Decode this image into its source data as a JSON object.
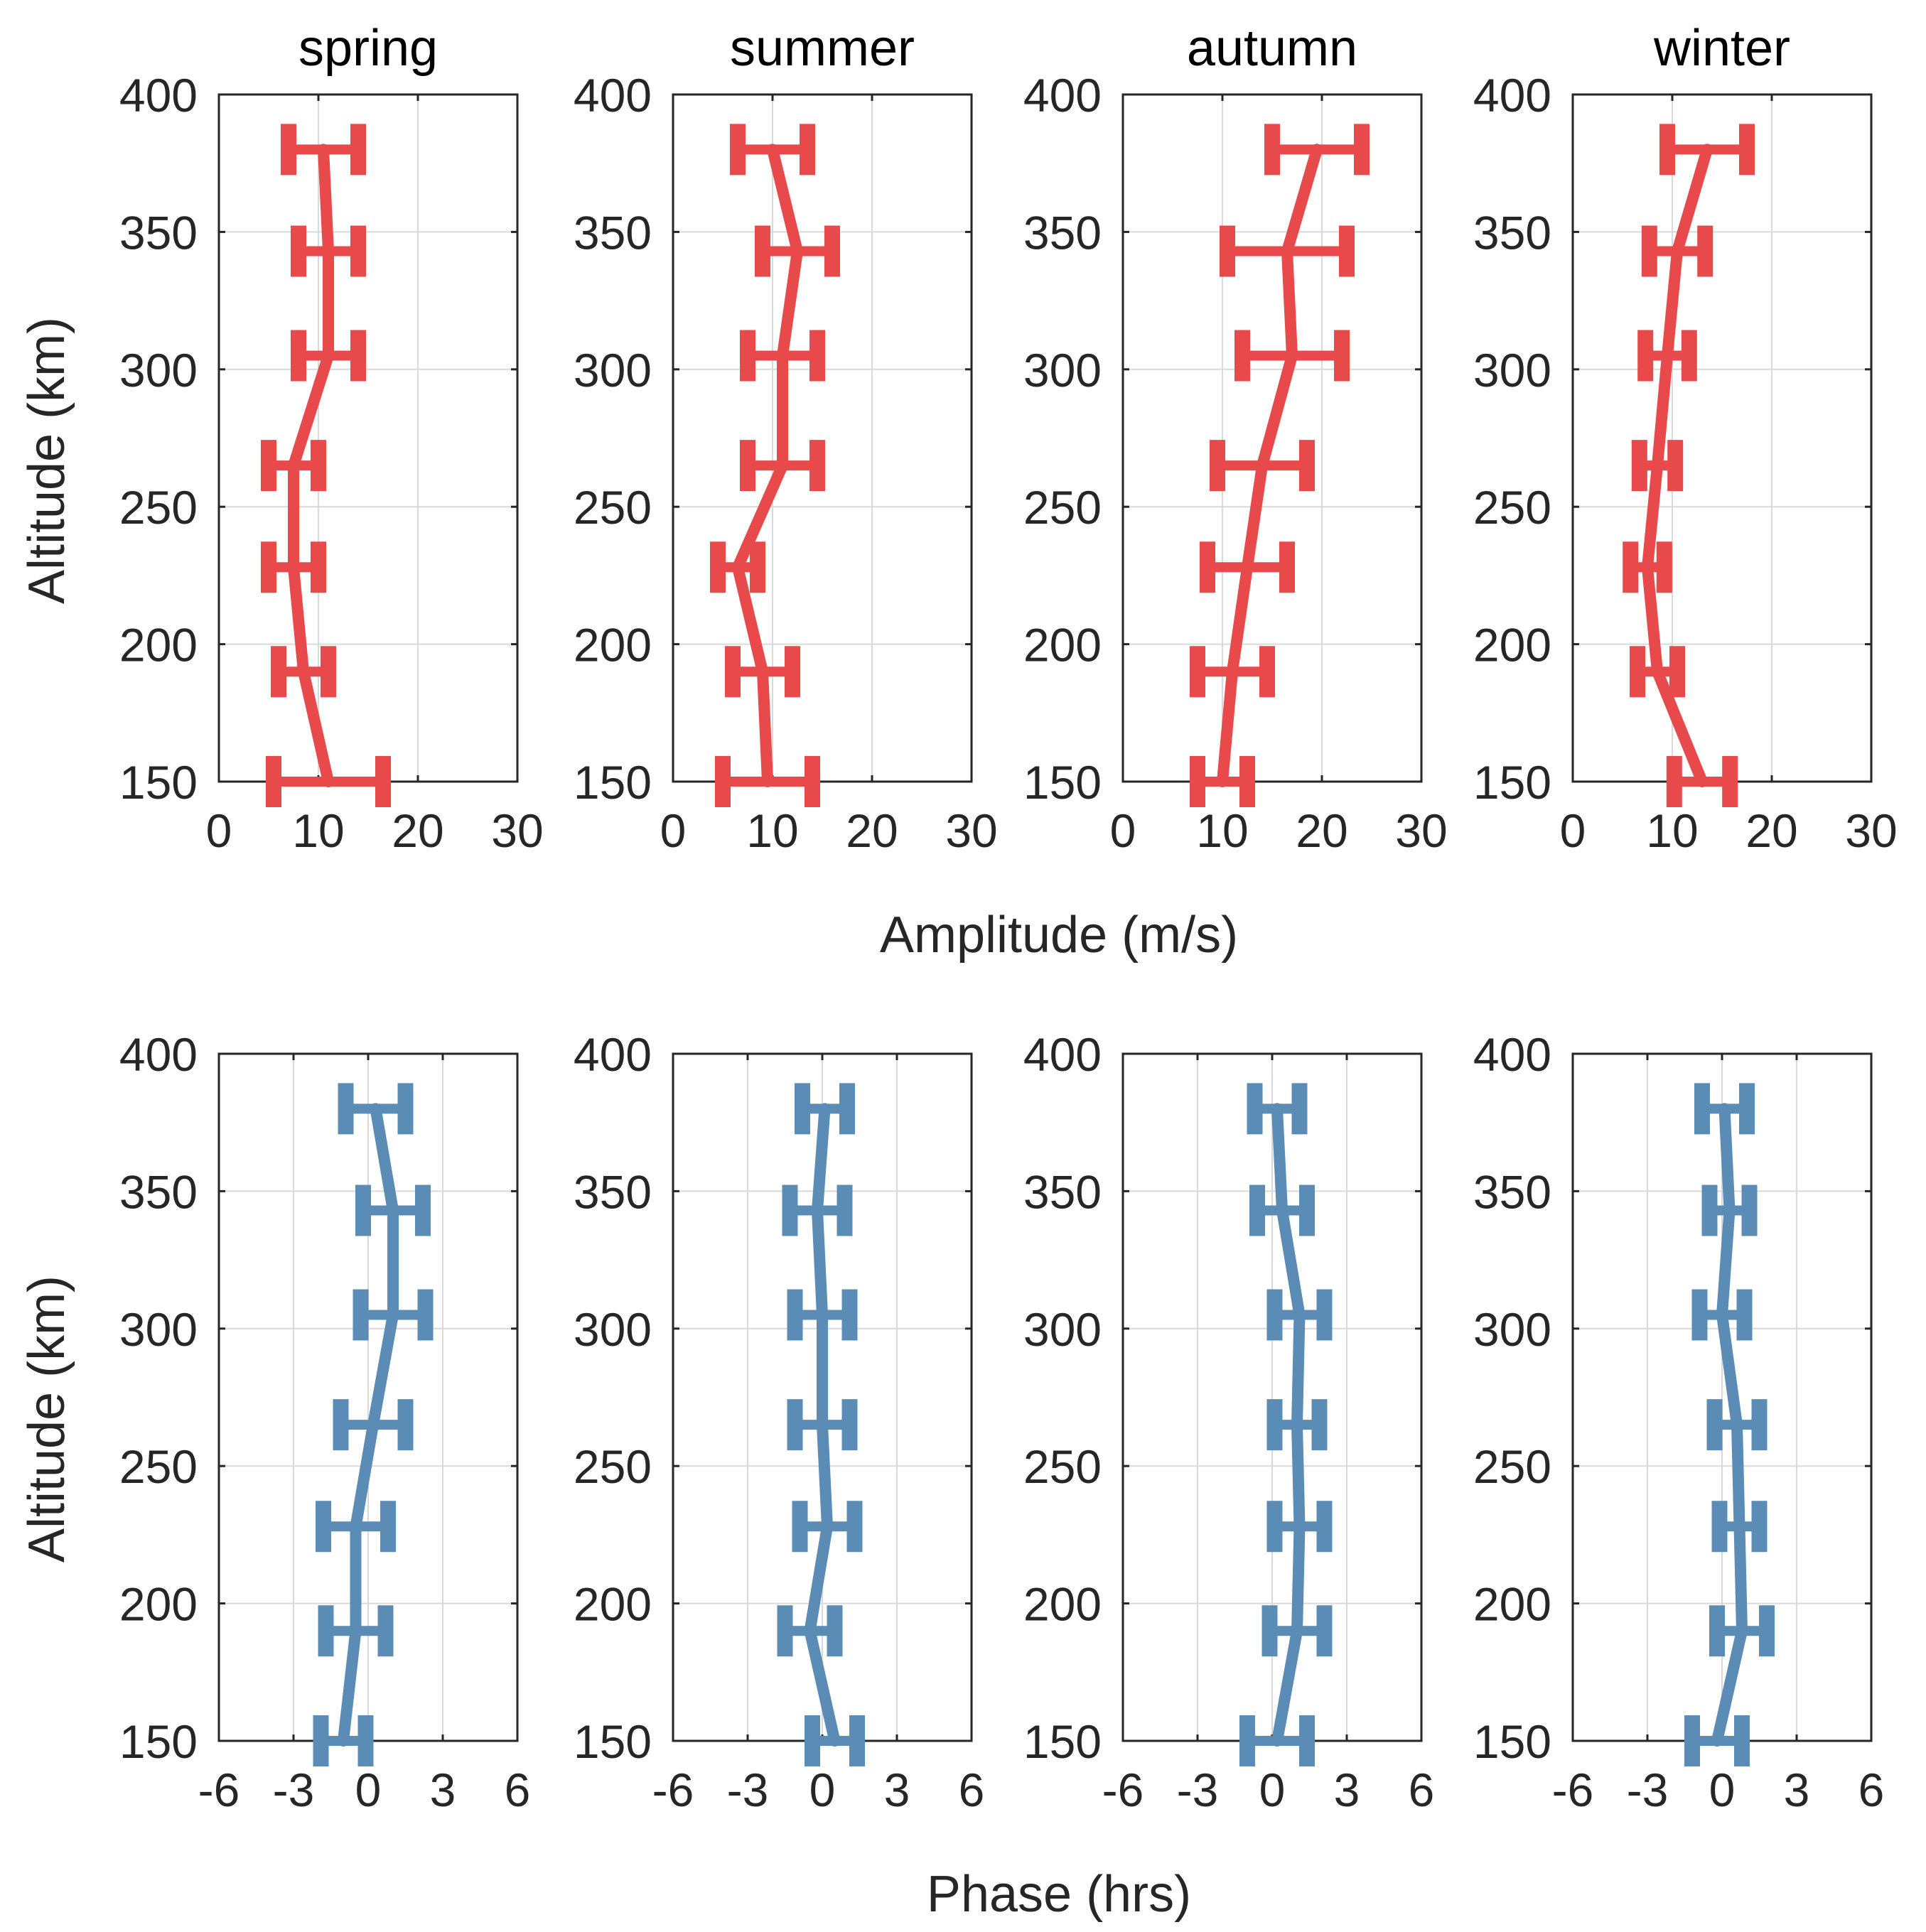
{
  "colors": {
    "amplitude": "#e84a4b",
    "phase": "#5a8cb5",
    "axis": "#262626",
    "grid": "#d9d9d9"
  },
  "labels": {
    "amplitude_xlabel": "Amplitude (m/s)",
    "phase_xlabel": "Phase (hrs)",
    "top_ylabel": "Altitude (km)",
    "bottom_ylabel": "Altitude (km)"
  },
  "chart_data": [
    {
      "type": "line",
      "row": "amplitude",
      "title": "spring",
      "xlabel": "Amplitude (m/s)",
      "ylabel": "Altitude (km)",
      "xlim": [
        0,
        30
      ],
      "ylim": [
        150,
        400
      ],
      "xticks": [
        "0",
        "10",
        "20",
        "30"
      ],
      "yticks": [
        "150",
        "200",
        "250",
        "300",
        "350",
        "400"
      ],
      "y": [
        150,
        190,
        228,
        265,
        305,
        343,
        380
      ],
      "x": [
        11,
        8.5,
        7.5,
        7.5,
        11,
        11,
        10.5
      ],
      "xerr": [
        5.5,
        2.5,
        2.5,
        2.5,
        3.0,
        3.0,
        3.5
      ]
    },
    {
      "type": "line",
      "row": "amplitude",
      "title": "summer",
      "xlabel": "Amplitude (m/s)",
      "ylabel": "Altitude (km)",
      "xlim": [
        0,
        30
      ],
      "ylim": [
        150,
        400
      ],
      "xticks": [
        "0",
        "10",
        "20",
        "30"
      ],
      "yticks": [
        "150",
        "200",
        "250",
        "300",
        "350",
        "400"
      ],
      "y": [
        150,
        190,
        228,
        265,
        305,
        343,
        380
      ],
      "x": [
        9.5,
        9,
        6.5,
        11,
        11,
        12.5,
        10
      ],
      "xerr": [
        4.5,
        3.0,
        2.0,
        3.5,
        3.5,
        3.5,
        3.5
      ]
    },
    {
      "type": "line",
      "row": "amplitude",
      "title": "autumn",
      "xlabel": "Amplitude (m/s)",
      "ylabel": "Altitude (km)",
      "xlim": [
        0,
        30
      ],
      "ylim": [
        150,
        400
      ],
      "xticks": [
        "0",
        "10",
        "20",
        "30"
      ],
      "yticks": [
        "150",
        "200",
        "250",
        "300",
        "350",
        "400"
      ],
      "y": [
        150,
        190,
        228,
        265,
        305,
        343,
        380
      ],
      "x": [
        10,
        11,
        12.5,
        14,
        17,
        16.5,
        19.5
      ],
      "xerr": [
        2.5,
        3.5,
        4.0,
        4.5,
        5.0,
        6.0,
        4.5
      ]
    },
    {
      "type": "line",
      "row": "amplitude",
      "title": "winter",
      "xlabel": "Amplitude (m/s)",
      "ylabel": "Altitude (km)",
      "xlim": [
        0,
        30
      ],
      "ylim": [
        150,
        400
      ],
      "xticks": [
        "0",
        "10",
        "20",
        "30"
      ],
      "yticks": [
        "150",
        "200",
        "250",
        "300",
        "350",
        "400"
      ],
      "y": [
        150,
        190,
        228,
        265,
        305,
        343,
        380
      ],
      "x": [
        13,
        8.5,
        7.5,
        8.5,
        9.5,
        10.5,
        13.5
      ],
      "xerr": [
        2.8,
        2.0,
        1.7,
        1.8,
        2.2,
        2.8,
        4.0
      ]
    },
    {
      "type": "line",
      "row": "phase",
      "title": "",
      "xlabel": "Phase (hrs)",
      "ylabel": "Altitude (km)",
      "xlim": [
        -6,
        6
      ],
      "ylim": [
        150,
        400
      ],
      "xticks": [
        "-6",
        "-3",
        "0",
        "3",
        "6"
      ],
      "yticks": [
        "150",
        "200",
        "250",
        "300",
        "350",
        "400"
      ],
      "y": [
        150,
        190,
        228,
        265,
        305,
        343,
        380
      ],
      "x": [
        -1,
        -0.5,
        -0.5,
        0.2,
        1,
        1,
        0.3
      ],
      "xerr": [
        0.9,
        1.2,
        1.3,
        1.3,
        1.3,
        1.2,
        1.2
      ]
    },
    {
      "type": "line",
      "row": "phase",
      "title": "",
      "xlabel": "Phase (hrs)",
      "ylabel": "Altitude (km)",
      "xlim": [
        -6,
        6
      ],
      "ylim": [
        150,
        400
      ],
      "xticks": [
        "-6",
        "-3",
        "0",
        "3",
        "6"
      ],
      "yticks": [
        "150",
        "200",
        "250",
        "300",
        "350",
        "400"
      ],
      "y": [
        150,
        190,
        228,
        265,
        305,
        343,
        380
      ],
      "x": [
        0.5,
        -0.5,
        0.2,
        0,
        0,
        -0.2,
        0.1
      ],
      "xerr": [
        0.9,
        1.0,
        1.1,
        1.1,
        1.1,
        1.1,
        0.9
      ]
    },
    {
      "type": "line",
      "row": "phase",
      "title": "",
      "xlabel": "Phase (hrs)",
      "ylabel": "Altitude (km)",
      "xlim": [
        -6,
        6
      ],
      "ylim": [
        150,
        400
      ],
      "xticks": [
        "-6",
        "-3",
        "0",
        "3",
        "6"
      ],
      "yticks": [
        "150",
        "200",
        "250",
        "300",
        "350",
        "400"
      ],
      "y": [
        150,
        190,
        228,
        265,
        305,
        343,
        380
      ],
      "x": [
        0.2,
        1,
        1.1,
        1,
        1.1,
        0.4,
        0.2
      ],
      "xerr": [
        1.2,
        1.1,
        1.0,
        0.9,
        1.0,
        1.0,
        0.9
      ]
    },
    {
      "type": "line",
      "row": "phase",
      "title": "",
      "xlabel": "Phase (hrs)",
      "ylabel": "Altitude (km)",
      "xlim": [
        -6,
        6
      ],
      "ylim": [
        150,
        400
      ],
      "xticks": [
        "-6",
        "-3",
        "0",
        "3",
        "6"
      ],
      "yticks": [
        "150",
        "200",
        "250",
        "300",
        "350",
        "400"
      ],
      "y": [
        150,
        190,
        228,
        265,
        305,
        343,
        380
      ],
      "x": [
        -0.2,
        0.8,
        0.7,
        0.6,
        0,
        0.3,
        0.1
      ],
      "xerr": [
        1.0,
        1.0,
        0.8,
        0.9,
        0.9,
        0.8,
        0.9
      ]
    }
  ]
}
